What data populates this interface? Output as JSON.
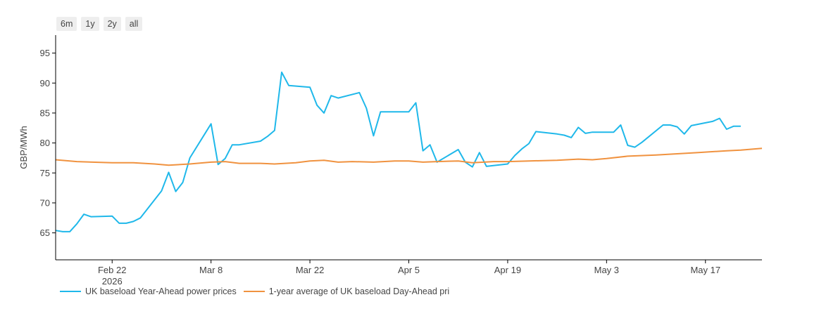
{
  "range_buttons": [
    "6m",
    "1y",
    "2y",
    "all"
  ],
  "colors": {
    "series1": "#1fb8ea",
    "series2": "#f0923f",
    "axis": "#000000",
    "text": "#444444"
  },
  "chart_data": {
    "type": "line",
    "ylabel": "GBP/MWh",
    "xlabel": "",
    "x_range": [
      "2026-02-14",
      "2026-05-25"
    ],
    "ylim": [
      60.5,
      98
    ],
    "y_ticks": [
      65,
      70,
      75,
      80,
      85,
      90,
      95
    ],
    "x_ticks": [
      {
        "date": "2026-02-22",
        "label": "Feb 22",
        "sublabel": "2026"
      },
      {
        "date": "2026-03-08",
        "label": "Mar 8",
        "sublabel": ""
      },
      {
        "date": "2026-03-22",
        "label": "Mar 22",
        "sublabel": ""
      },
      {
        "date": "2026-04-05",
        "label": "Apr 5",
        "sublabel": ""
      },
      {
        "date": "2026-04-19",
        "label": "Apr 19",
        "sublabel": ""
      },
      {
        "date": "2026-05-03",
        "label": "May 3",
        "sublabel": ""
      },
      {
        "date": "2026-05-17",
        "label": "May 17",
        "sublabel": ""
      }
    ],
    "grid": false,
    "legend_position": "bottom-left",
    "series": [
      {
        "name": "UK baseload Year-Ahead power prices",
        "color": "#1fb8ea",
        "points": [
          [
            "2026-02-14",
            65.4
          ],
          [
            "2026-02-15",
            65.2
          ],
          [
            "2026-02-16",
            65.2
          ],
          [
            "2026-02-17",
            66.5
          ],
          [
            "2026-02-18",
            68.1
          ],
          [
            "2026-02-19",
            67.7
          ],
          [
            "2026-02-22",
            67.8
          ],
          [
            "2026-02-23",
            66.6
          ],
          [
            "2026-02-24",
            66.6
          ],
          [
            "2026-02-25",
            66.9
          ],
          [
            "2026-02-26",
            67.5
          ],
          [
            "2026-03-01",
            72.0
          ],
          [
            "2026-03-02",
            75.1
          ],
          [
            "2026-03-03",
            71.9
          ],
          [
            "2026-03-04",
            73.4
          ],
          [
            "2026-03-05",
            77.5
          ],
          [
            "2026-03-08",
            83.2
          ],
          [
            "2026-03-09",
            76.4
          ],
          [
            "2026-03-10",
            77.4
          ],
          [
            "2026-03-11",
            79.7
          ],
          [
            "2026-03-12",
            79.7
          ],
          [
            "2026-03-15",
            80.3
          ],
          [
            "2026-03-16",
            81.1
          ],
          [
            "2026-03-17",
            82.1
          ],
          [
            "2026-03-18",
            91.8
          ],
          [
            "2026-03-19",
            89.6
          ],
          [
            "2026-03-22",
            89.3
          ],
          [
            "2026-03-23",
            86.3
          ],
          [
            "2026-03-24",
            85.0
          ],
          [
            "2026-03-25",
            87.9
          ],
          [
            "2026-03-26",
            87.5
          ],
          [
            "2026-03-29",
            88.4
          ],
          [
            "2026-03-30",
            85.8
          ],
          [
            "2026-03-31",
            81.2
          ],
          [
            "2026-04-01",
            85.2
          ],
          [
            "2026-04-05",
            85.2
          ],
          [
            "2026-04-06",
            86.7
          ],
          [
            "2026-04-07",
            78.7
          ],
          [
            "2026-04-08",
            79.7
          ],
          [
            "2026-04-09",
            76.8
          ],
          [
            "2026-04-12",
            78.9
          ],
          [
            "2026-04-13",
            76.8
          ],
          [
            "2026-04-14",
            76.0
          ],
          [
            "2026-04-15",
            78.4
          ],
          [
            "2026-04-16",
            76.1
          ],
          [
            "2026-04-19",
            76.5
          ],
          [
            "2026-04-20",
            77.9
          ],
          [
            "2026-04-21",
            79.0
          ],
          [
            "2026-04-22",
            79.9
          ],
          [
            "2026-04-23",
            81.9
          ],
          [
            "2026-04-26",
            81.5
          ],
          [
            "2026-04-27",
            81.3
          ],
          [
            "2026-04-28",
            80.9
          ],
          [
            "2026-04-29",
            82.6
          ],
          [
            "2026-04-30",
            81.6
          ],
          [
            "2026-05-01",
            81.8
          ],
          [
            "2026-05-03",
            81.8
          ],
          [
            "2026-05-04",
            81.8
          ],
          [
            "2026-05-05",
            83.0
          ],
          [
            "2026-05-06",
            79.6
          ],
          [
            "2026-05-07",
            79.3
          ],
          [
            "2026-05-08",
            80.1
          ],
          [
            "2026-05-11",
            83.0
          ],
          [
            "2026-05-12",
            83.0
          ],
          [
            "2026-05-13",
            82.7
          ],
          [
            "2026-05-14",
            81.5
          ],
          [
            "2026-05-15",
            82.9
          ],
          [
            "2026-05-18",
            83.6
          ],
          [
            "2026-05-19",
            84.1
          ],
          [
            "2026-05-20",
            82.3
          ],
          [
            "2026-05-21",
            82.8
          ],
          [
            "2026-05-22",
            82.8
          ]
        ]
      },
      {
        "name": "1-year average of UK baseload Day-Ahead pri",
        "color": "#f0923f",
        "points": [
          [
            "2026-02-14",
            77.2
          ],
          [
            "2026-02-17",
            76.9
          ],
          [
            "2026-02-22",
            76.7
          ],
          [
            "2026-02-25",
            76.7
          ],
          [
            "2026-02-28",
            76.5
          ],
          [
            "2026-03-02",
            76.3
          ],
          [
            "2026-03-05",
            76.5
          ],
          [
            "2026-03-08",
            76.8
          ],
          [
            "2026-03-10",
            76.9
          ],
          [
            "2026-03-12",
            76.6
          ],
          [
            "2026-03-15",
            76.6
          ],
          [
            "2026-03-17",
            76.5
          ],
          [
            "2026-03-20",
            76.7
          ],
          [
            "2026-03-22",
            77.0
          ],
          [
            "2026-03-24",
            77.1
          ],
          [
            "2026-03-26",
            76.8
          ],
          [
            "2026-03-28",
            76.9
          ],
          [
            "2026-03-31",
            76.8
          ],
          [
            "2026-04-03",
            77.0
          ],
          [
            "2026-04-05",
            77.0
          ],
          [
            "2026-04-07",
            76.8
          ],
          [
            "2026-04-09",
            76.9
          ],
          [
            "2026-04-12",
            77.0
          ],
          [
            "2026-04-14",
            76.7
          ],
          [
            "2026-04-17",
            76.9
          ],
          [
            "2026-04-19",
            76.9
          ],
          [
            "2026-04-22",
            77.0
          ],
          [
            "2026-04-26",
            77.1
          ],
          [
            "2026-04-29",
            77.3
          ],
          [
            "2026-05-01",
            77.2
          ],
          [
            "2026-05-03",
            77.4
          ],
          [
            "2026-05-06",
            77.8
          ],
          [
            "2026-05-10",
            78.0
          ],
          [
            "2026-05-13",
            78.2
          ],
          [
            "2026-05-16",
            78.4
          ],
          [
            "2026-05-20",
            78.7
          ],
          [
            "2026-05-22",
            78.8
          ],
          [
            "2026-05-25",
            79.1
          ]
        ]
      }
    ]
  }
}
